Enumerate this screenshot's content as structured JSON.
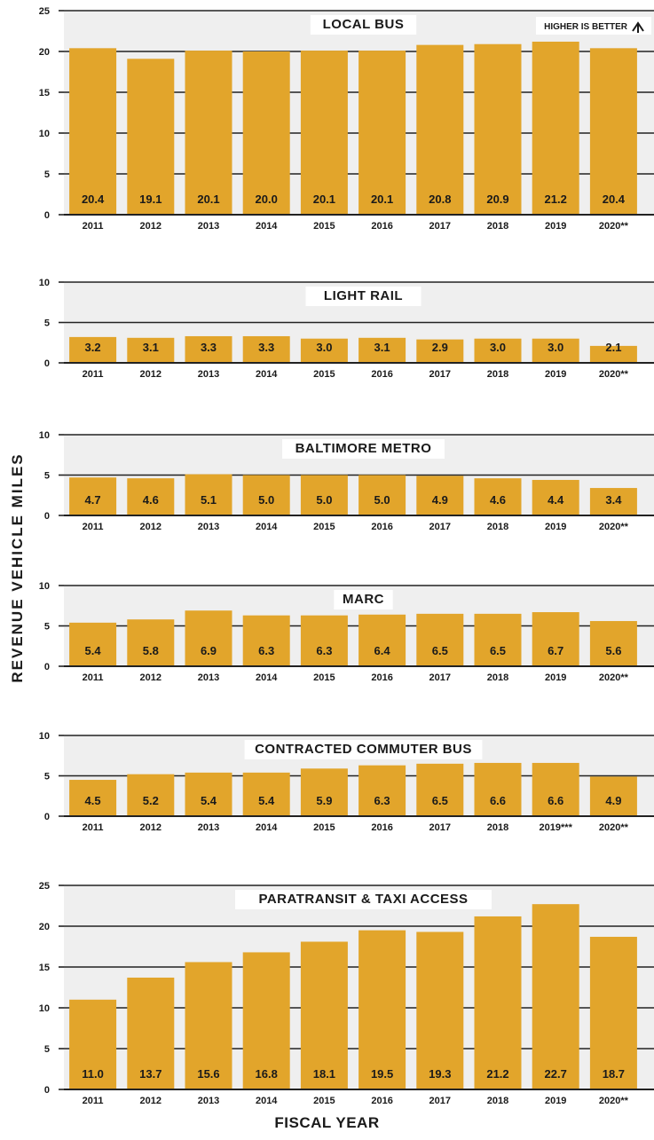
{
  "y_axis_label": "REVENUE VEHICLE MILES",
  "x_axis_label": "FISCAL YEAR",
  "higher_is_better": "HIGHER IS BETTER",
  "colors": {
    "bar": "#E2A52B",
    "panel": "#EFEFEF",
    "grid": "#222222",
    "value_text": "#1a1a1a"
  },
  "chart_data": [
    {
      "type": "bar",
      "title": "LOCAL BUS",
      "categories": [
        "2011",
        "2012",
        "2013",
        "2014",
        "2015",
        "2016",
        "2017",
        "2018",
        "2019",
        "2020**"
      ],
      "values": [
        20.4,
        19.1,
        20.1,
        20.0,
        20.1,
        20.1,
        20.8,
        20.9,
        21.2,
        20.4
      ],
      "value_labels": [
        "20.4",
        "19.1",
        "20.1",
        "20.0",
        "20.1",
        "20.1",
        "20.8",
        "20.9",
        "21.2",
        "20.4"
      ],
      "ylim": [
        0,
        25
      ],
      "yticks": [
        "0",
        "5",
        "10",
        "15",
        "20",
        "25"
      ],
      "grid": true
    },
    {
      "type": "bar",
      "title": "LIGHT RAIL",
      "categories": [
        "2011",
        "2012",
        "2013",
        "2014",
        "2015",
        "2016",
        "2017",
        "2018",
        "2019",
        "2020**"
      ],
      "values": [
        3.2,
        3.1,
        3.3,
        3.3,
        3.0,
        3.1,
        2.9,
        3.0,
        3.0,
        2.1
      ],
      "value_labels": [
        "3.2",
        "3.1",
        "3.3",
        "3.3",
        "3.0",
        "3.1",
        "2.9",
        "3.0",
        "3.0",
        "2.1"
      ],
      "ylim": [
        0,
        10
      ],
      "yticks": [
        "0",
        "5",
        "10"
      ],
      "grid": true
    },
    {
      "type": "bar",
      "title": "BALTIMORE METRO",
      "categories": [
        "2011",
        "2012",
        "2013",
        "2014",
        "2015",
        "2016",
        "2017",
        "2018",
        "2019",
        "2020**"
      ],
      "values": [
        4.7,
        4.6,
        5.1,
        5.0,
        5.0,
        5.0,
        4.9,
        4.6,
        4.4,
        3.4
      ],
      "value_labels": [
        "4.7",
        "4.6",
        "5.1",
        "5.0",
        "5.0",
        "5.0",
        "4.9",
        "4.6",
        "4.4",
        "3.4"
      ],
      "ylim": [
        0,
        10
      ],
      "yticks": [
        "0",
        "5",
        "10"
      ],
      "grid": true
    },
    {
      "type": "bar",
      "title": "MARC",
      "categories": [
        "2011",
        "2012",
        "2013",
        "2014",
        "2015",
        "2016",
        "2017",
        "2018",
        "2019",
        "2020**"
      ],
      "values": [
        5.4,
        5.8,
        6.9,
        6.3,
        6.3,
        6.4,
        6.5,
        6.5,
        6.7,
        5.6
      ],
      "value_labels": [
        "5.4",
        "5.8",
        "6.9",
        "6.3",
        "6.3",
        "6.4",
        "6.5",
        "6.5",
        "6.7",
        "5.6"
      ],
      "ylim": [
        0,
        10
      ],
      "yticks": [
        "0",
        "5",
        "10"
      ],
      "grid": true
    },
    {
      "type": "bar",
      "title": "CONTRACTED COMMUTER BUS",
      "categories": [
        "2011",
        "2012",
        "2013",
        "2014",
        "2015",
        "2016",
        "2017",
        "2018",
        "2019***",
        "2020**"
      ],
      "values": [
        4.5,
        5.2,
        5.4,
        5.4,
        5.9,
        6.3,
        6.5,
        6.6,
        6.6,
        4.9
      ],
      "value_labels": [
        "4.5",
        "5.2",
        "5.4",
        "5.4",
        "5.9",
        "6.3",
        "6.5",
        "6.6",
        "6.6",
        "4.9"
      ],
      "ylim": [
        0,
        10
      ],
      "yticks": [
        "0",
        "5",
        "10"
      ],
      "grid": true
    },
    {
      "type": "bar",
      "title": "PARATRANSIT & TAXI ACCESS",
      "categories": [
        "2011",
        "2012",
        "2013",
        "2014",
        "2015",
        "2016",
        "2017",
        "2018",
        "2019",
        "2020**"
      ],
      "values": [
        11.0,
        13.7,
        15.6,
        16.8,
        18.1,
        19.5,
        19.3,
        21.2,
        22.7,
        18.7
      ],
      "value_labels": [
        "11.0",
        "13.7",
        "15.6",
        "16.8",
        "18.1",
        "19.5",
        "19.3",
        "21.2",
        "22.7",
        "18.7"
      ],
      "ylim": [
        0,
        25
      ],
      "yticks": [
        "0",
        "5",
        "10",
        "15",
        "20",
        "25"
      ],
      "grid": true
    }
  ]
}
